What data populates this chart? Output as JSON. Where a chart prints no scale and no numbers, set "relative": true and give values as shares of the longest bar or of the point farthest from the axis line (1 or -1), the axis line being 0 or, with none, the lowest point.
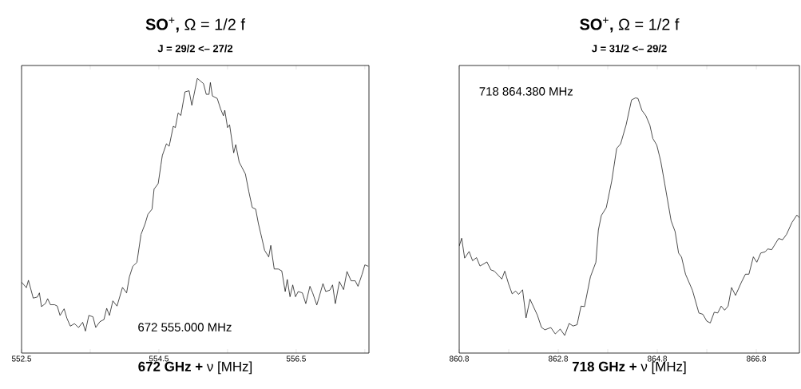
{
  "chart_data": [
    {
      "type": "line",
      "relative": true,
      "title": "**SO**$^{+}$**,**  Ω = 1/2 f",
      "subtitle": "J = 29/2 <– 27/2",
      "xlabel": "**672 GHz +** ν  [MHz]",
      "annotations": [
        "672 555.000 MHz"
      ],
      "xlim": [
        552.5,
        557.56
      ],
      "xticks": [
        552.5,
        {
          "value": 553.5,
          "label": null
        },
        554.5,
        {
          "value": 555.5,
          "label": null
        },
        556.5,
        {
          "value": 557.5,
          "label": null
        }
      ],
      "series": [
        {
          "color": "#000000",
          "x": [
            552.5,
            552.57,
            552.6,
            552.67,
            552.73,
            552.76,
            552.79,
            552.85,
            552.88,
            552.92,
            552.98,
            553.02,
            553.06,
            553.12,
            553.16,
            553.21,
            553.27,
            553.33,
            553.39,
            553.43,
            553.48,
            553.54,
            553.58,
            553.64,
            553.7,
            553.74,
            553.78,
            553.83,
            553.89,
            553.97,
            554.03,
            554.07,
            554.12,
            554.18,
            554.24,
            554.3,
            554.34,
            554.4,
            554.43,
            554.49,
            554.53,
            554.55,
            554.61,
            554.65,
            554.71,
            554.74,
            554.78,
            554.82,
            554.88,
            554.94,
            554.98,
            555.06,
            555.15,
            555.19,
            555.23,
            555.25,
            555.28,
            555.35,
            555.4,
            555.44,
            555.46,
            555.5,
            555.53,
            555.59,
            555.62,
            555.67,
            555.71,
            555.76,
            555.81,
            555.86,
            555.91,
            555.95,
            556.0,
            556.04,
            556.1,
            556.13,
            556.18,
            556.24,
            556.29,
            556.34,
            556.37,
            556.41,
            556.45,
            556.49,
            556.53,
            556.59,
            556.64,
            556.7,
            556.74,
            556.8,
            556.84,
            556.89,
            556.93,
            556.99,
            557.03,
            557.07,
            557.13,
            557.19,
            557.24,
            557.3,
            557.36,
            557.4,
            557.46,
            557.5,
            557.55
          ],
          "values": [
            0.258,
            0.238,
            0.265,
            0.2,
            0.204,
            0.219,
            0.169,
            0.181,
            0.198,
            0.176,
            0.176,
            0.171,
            0.137,
            0.161,
            0.127,
            0.098,
            0.107,
            0.093,
            0.112,
            0.08,
            0.137,
            0.132,
            0.093,
            0.114,
            0.122,
            0.163,
            0.137,
            0.19,
            0.171,
            0.239,
            0.219,
            0.277,
            0.316,
            0.33,
            0.432,
            0.471,
            0.505,
            0.524,
            0.597,
            0.617,
            0.685,
            0.719,
            0.762,
            0.753,
            0.826,
            0.821,
            0.874,
            0.865,
            0.951,
            0.955,
            0.902,
            1.0,
            0.981,
            0.942,
            0.942,
            0.985,
            0.936,
            0.927,
            0.888,
            0.864,
            0.884,
            0.821,
            0.831,
            0.729,
            0.759,
            0.695,
            0.676,
            0.652,
            0.588,
            0.53,
            0.524,
            0.471,
            0.418,
            0.374,
            0.35,
            0.392,
            0.306,
            0.306,
            0.299,
            0.224,
            0.268,
            0.205,
            0.248,
            0.205,
            0.224,
            0.219,
            0.18,
            0.243,
            0.219,
            0.175,
            0.209,
            0.253,
            0.224,
            0.229,
            0.248,
            0.18,
            0.26,
            0.231,
            0.297,
            0.263,
            0.263,
            0.243,
            0.287,
            0.321,
            0.316
          ]
        }
      ]
    },
    {
      "type": "line",
      "relative": true,
      "title": "**SO**$^{+}$**,** Ω = 1/2 f",
      "subtitle": "J = 31/2 <– 29/2",
      "xlabel": "**718 GHz +** ν [MHz]",
      "annotations": [
        "718 864.380 MHz"
      ],
      "xlim": [
        860.8,
        867.67
      ],
      "xticks": [
        860.8,
        {
          "value": 861.8,
          "label": null
        },
        862.8,
        {
          "value": 863.8,
          "label": null
        },
        864.8,
        {
          "value": 865.8,
          "label": null
        },
        866.8
      ],
      "series": [
        {
          "color": "#000000",
          "x": [
            860.8,
            860.85,
            860.91,
            861.0,
            861.07,
            861.15,
            861.22,
            861.36,
            861.44,
            861.51,
            861.66,
            861.72,
            861.8,
            861.87,
            861.94,
            862.0,
            862.08,
            862.15,
            862.23,
            862.38,
            862.46,
            862.53,
            862.65,
            862.74,
            862.84,
            862.93,
            863.02,
            863.1,
            863.18,
            863.26,
            863.33,
            863.45,
            863.56,
            863.61,
            863.67,
            863.77,
            863.88,
            863.98,
            864.06,
            864.17,
            864.28,
            864.36,
            864.41,
            864.49,
            864.57,
            864.65,
            864.71,
            864.79,
            864.87,
            864.95,
            865.08,
            865.16,
            865.23,
            865.29,
            865.37,
            865.51,
            865.64,
            865.72,
            865.8,
            865.87,
            865.95,
            866.02,
            866.09,
            866.16,
            866.23,
            866.3,
            866.38,
            866.5,
            866.58,
            866.65,
            866.74,
            866.81,
            866.89,
            866.98,
            867.03,
            867.11,
            867.25,
            867.33,
            867.41,
            867.52,
            867.62,
            867.67
          ],
          "values": [
            0.419,
            0.45,
            0.372,
            0.398,
            0.362,
            0.374,
            0.341,
            0.357,
            0.326,
            0.321,
            0.29,
            0.321,
            0.269,
            0.232,
            0.243,
            0.23,
            0.248,
            0.138,
            0.211,
            0.148,
            0.101,
            0.091,
            0.1,
            0.075,
            0.094,
            0.069,
            0.116,
            0.106,
            0.111,
            0.184,
            0.182,
            0.299,
            0.356,
            0.482,
            0.539,
            0.57,
            0.674,
            0.802,
            0.82,
            0.894,
            0.992,
            1.0,
            0.998,
            0.951,
            0.93,
            0.893,
            0.841,
            0.815,
            0.752,
            0.664,
            0.518,
            0.476,
            0.392,
            0.376,
            0.309,
            0.246,
            0.157,
            0.152,
            0.125,
            0.118,
            0.16,
            0.157,
            0.184,
            0.168,
            0.184,
            0.257,
            0.226,
            0.278,
            0.309,
            0.309,
            0.377,
            0.356,
            0.392,
            0.397,
            0.408,
            0.405,
            0.449,
            0.444,
            0.465,
            0.512,
            0.541,
            0.53
          ]
        }
      ]
    }
  ]
}
